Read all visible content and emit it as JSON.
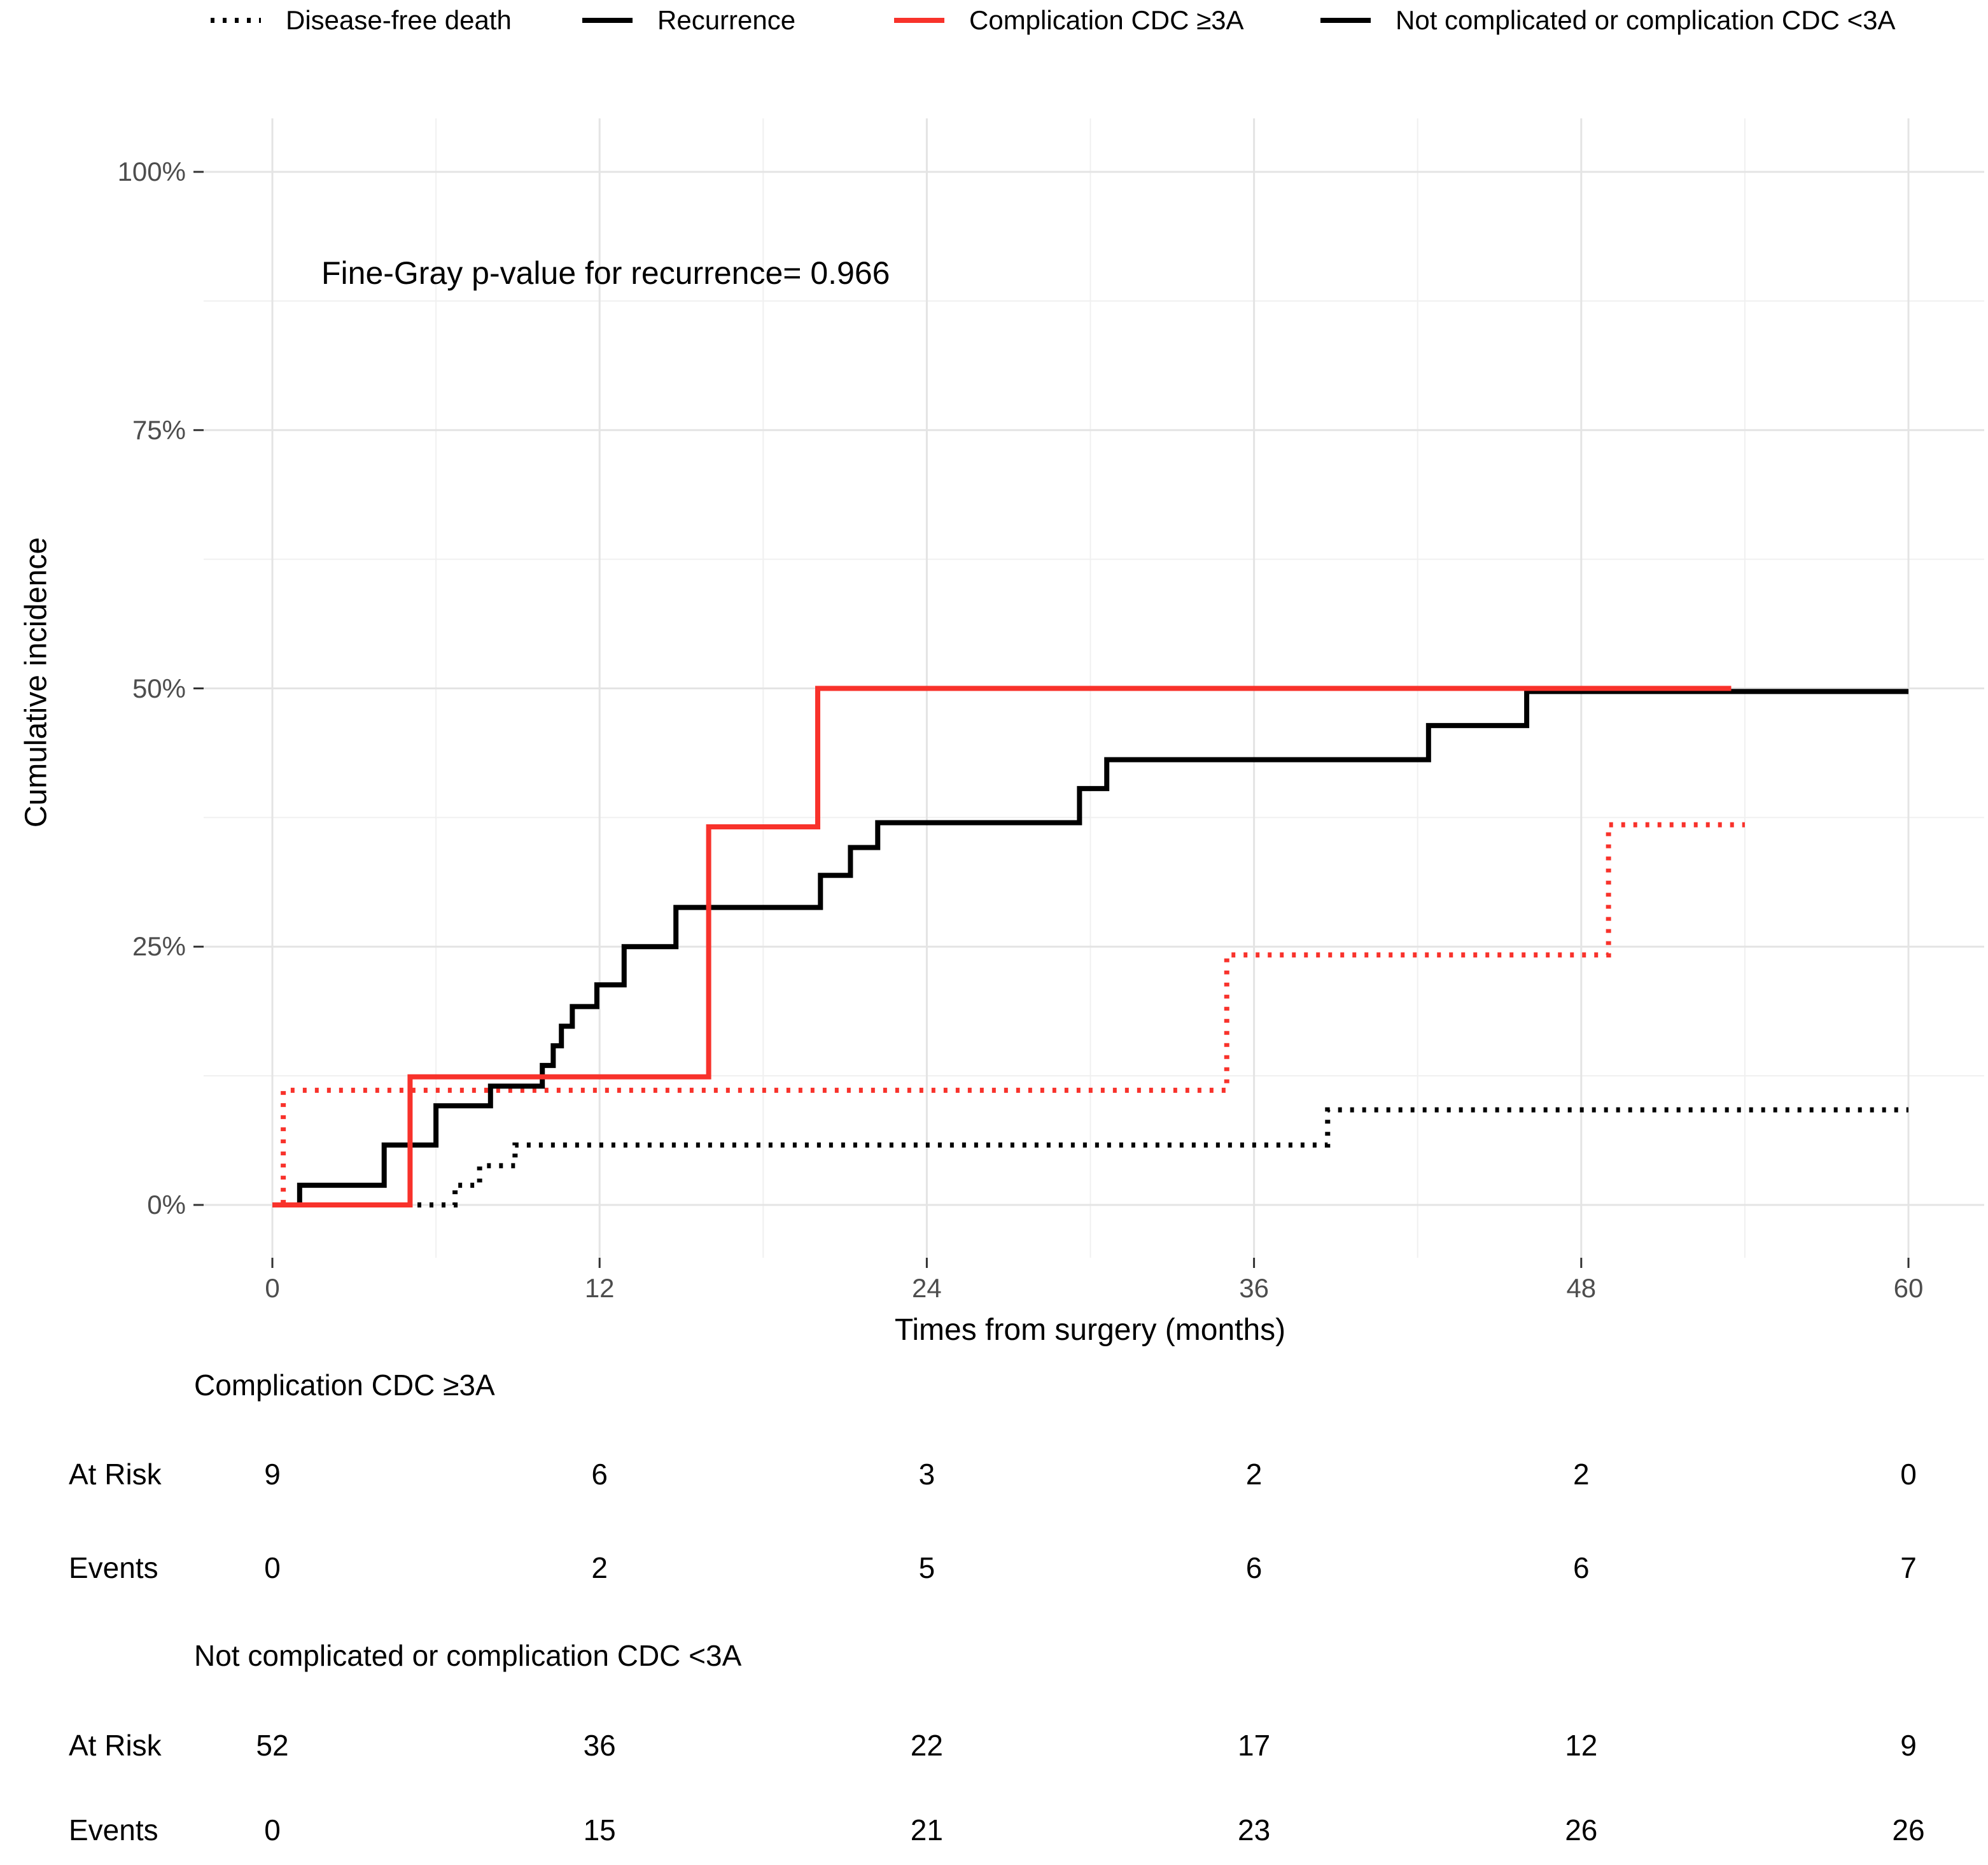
{
  "colors": {
    "red": "#F8322B",
    "black": "#000000",
    "grid_major": "#E4E4E4",
    "grid_minor": "#F0F0F0",
    "tick_text": "#4D4D4D",
    "tick_mark": "#333333"
  },
  "legend": {
    "items": [
      {
        "label": "Disease-free death",
        "color": "#000000",
        "linetype": "dotted"
      },
      {
        "label": "Recurrence",
        "color": "#000000",
        "linetype": "solid"
      },
      {
        "label": "Complication CDC ≥3A",
        "color": "#F8322B",
        "linetype": "solid"
      },
      {
        "label": "Not complicated or complication CDC <3A",
        "color": "#000000",
        "linetype": "solid"
      }
    ]
  },
  "annotation": "Fine-Gray p-value for recurrence= 0.966",
  "y_axis": {
    "title": "Cumulative incidence",
    "ticks": [
      {
        "label": "0%",
        "value": 0
      },
      {
        "label": "25%",
        "value": 25
      },
      {
        "label": "50%",
        "value": 50
      },
      {
        "label": "75%",
        "value": 75
      },
      {
        "label": "100%",
        "value": 100
      }
    ],
    "minor": [
      12.5,
      37.5,
      62.5,
      87.5
    ]
  },
  "x_axis": {
    "title": "Times from surgery (months)",
    "ticks": [
      {
        "label": "0",
        "value": 0
      },
      {
        "label": "12",
        "value": 12
      },
      {
        "label": "24",
        "value": 24
      },
      {
        "label": "36",
        "value": 36
      },
      {
        "label": "48",
        "value": 48
      },
      {
        "label": "60",
        "value": 60
      }
    ],
    "minor": [
      6,
      18,
      30,
      42,
      54
    ]
  },
  "chart_data": {
    "type": "line",
    "subtype": "step-cumulative-incidence",
    "xlim": [
      0,
      60
    ],
    "ylim": [
      0,
      100
    ],
    "grid": true,
    "legend_position": "top",
    "series": [
      {
        "event": "Disease-free death",
        "group": "Not complicated or complication CDC <3A",
        "color": "#000000",
        "linetype": "dotted",
        "points": [
          [
            0,
            0
          ],
          [
            6.7,
            1.9
          ],
          [
            7.6,
            3.8
          ],
          [
            8.9,
            5.8
          ],
          [
            38.7,
            9.2
          ],
          [
            60,
            9.2
          ]
        ]
      },
      {
        "event": "Disease-free death",
        "group": "Complication CDC ≥3A",
        "color": "#F8322B",
        "linetype": "dotted",
        "points": [
          [
            0,
            0
          ],
          [
            0.4,
            11.1
          ],
          [
            35,
            24.2
          ],
          [
            49,
            36.8
          ],
          [
            54,
            36.8
          ]
        ]
      },
      {
        "event": "Recurrence",
        "group": "Not complicated or complication CDC <3A",
        "color": "#000000",
        "linetype": "solid",
        "points": [
          [
            0,
            0
          ],
          [
            1,
            1.9
          ],
          [
            4.1,
            5.8
          ],
          [
            6,
            9.6
          ],
          [
            8,
            11.5
          ],
          [
            9.9,
            13.5
          ],
          [
            10.3,
            15.4
          ],
          [
            10.6,
            17.3
          ],
          [
            11,
            19.2
          ],
          [
            11.9,
            21.3
          ],
          [
            12.9,
            25.0
          ],
          [
            14.8,
            28.8
          ],
          [
            20.1,
            31.9
          ],
          [
            21.2,
            34.6
          ],
          [
            22.2,
            37.0
          ],
          [
            29.6,
            40.3
          ],
          [
            30.6,
            43.1
          ],
          [
            42.4,
            46.4
          ],
          [
            46,
            49.7
          ],
          [
            60,
            49.7
          ]
        ]
      },
      {
        "event": "Recurrence",
        "group": "Complication CDC ≥3A",
        "color": "#F8322B",
        "linetype": "solid",
        "points": [
          [
            0,
            0
          ],
          [
            5.05,
            12.4
          ],
          [
            16,
            36.6
          ],
          [
            20,
            50
          ],
          [
            53.5,
            50
          ]
        ]
      }
    ]
  },
  "risk_table": {
    "at_risk_label": "At Risk",
    "events_label": "Events",
    "time_points": [
      0,
      12,
      24,
      36,
      48,
      60
    ],
    "groups": [
      {
        "name": "Complication CDC ≥3A",
        "at_risk": [
          "9",
          "6",
          "3",
          "2",
          "2",
          "0"
        ],
        "events": [
          "0",
          "2",
          "5",
          "6",
          "6",
          "7"
        ]
      },
      {
        "name": "Not complicated or complication CDC <3A",
        "at_risk": [
          "52",
          "36",
          "22",
          "17",
          "12",
          "9"
        ],
        "events": [
          "0",
          "15",
          "21",
          "23",
          "26",
          "26"
        ]
      }
    ]
  }
}
